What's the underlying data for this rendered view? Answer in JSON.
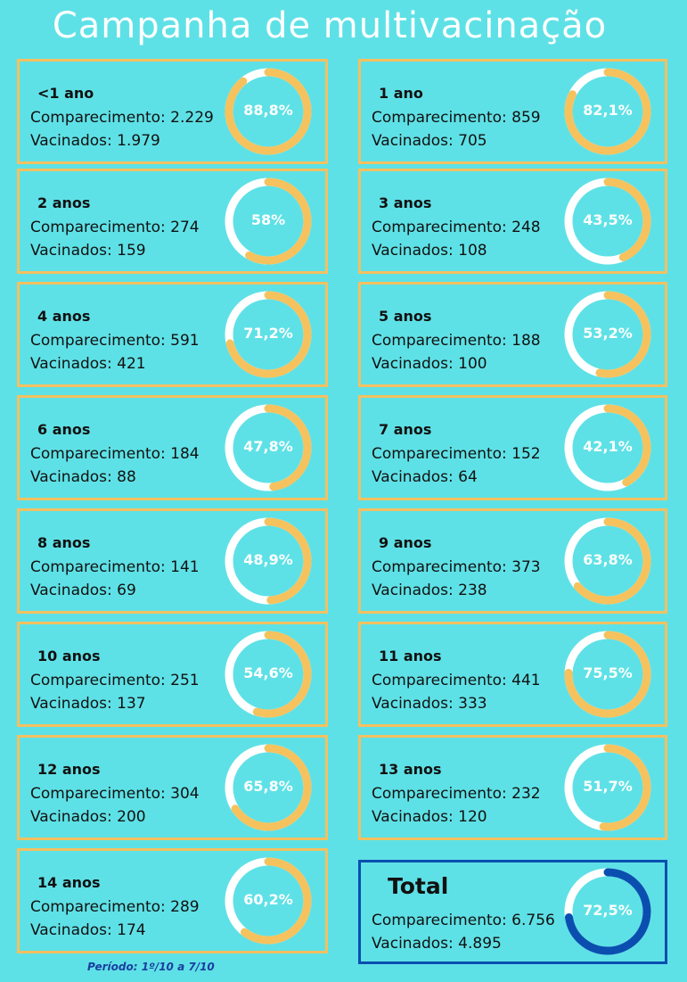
{
  "title": "Campanha de multivacinação",
  "period": "Período: 1º/10 a 7/10",
  "colors": {
    "background": "#5ee1e6",
    "card_border": "#f4c060",
    "ring_fill": "#f6c25e",
    "ring_track": "#ffffff",
    "total_border": "#0a4fb0",
    "total_fill": "#0a4fb0"
  },
  "chart_data": {
    "type": "donut",
    "title": "Campanha de multivacinação",
    "groups": [
      {
        "label": "<1 ano",
        "attendance_text": "Comparecimento: 2.229",
        "vaccinated_text": "Vacinados: 1.979",
        "attendance": 2229,
        "vaccinated": 1979,
        "pct_text": "88,8%",
        "pct": 88.8
      },
      {
        "label": "1 ano",
        "attendance_text": "Comparecimento: 859",
        "vaccinated_text": "Vacinados: 705",
        "attendance": 859,
        "vaccinated": 705,
        "pct_text": "82,1%",
        "pct": 82.1
      },
      {
        "label": "2 anos",
        "attendance_text": "Comparecimento: 274",
        "vaccinated_text": "Vacinados: 159",
        "attendance": 274,
        "vaccinated": 159,
        "pct_text": "58%",
        "pct": 58.0
      },
      {
        "label": "3 anos",
        "attendance_text": "Comparecimento: 248",
        "vaccinated_text": "Vacinados: 108",
        "attendance": 248,
        "vaccinated": 108,
        "pct_text": "43,5%",
        "pct": 43.5
      },
      {
        "label": "4 anos",
        "attendance_text": "Comparecimento: 591",
        "vaccinated_text": "Vacinados: 421",
        "attendance": 591,
        "vaccinated": 421,
        "pct_text": "71,2%",
        "pct": 71.2
      },
      {
        "label": "5 anos",
        "attendance_text": "Comparecimento: 188",
        "vaccinated_text": "Vacinados: 100",
        "attendance": 188,
        "vaccinated": 100,
        "pct_text": "53,2%",
        "pct": 53.2
      },
      {
        "label": "6 anos",
        "attendance_text": "Comparecimento: 184",
        "vaccinated_text": "Vacinados: 88",
        "attendance": 184,
        "vaccinated": 88,
        "pct_text": "47,8%",
        "pct": 47.8
      },
      {
        "label": "7 anos",
        "attendance_text": "Comparecimento: 152",
        "vaccinated_text": "Vacinados: 64",
        "attendance": 152,
        "vaccinated": 64,
        "pct_text": "42,1%",
        "pct": 42.1
      },
      {
        "label": "8 anos",
        "attendance_text": "Comparecimento: 141",
        "vaccinated_text": "Vacinados: 69",
        "attendance": 141,
        "vaccinated": 69,
        "pct_text": "48,9%",
        "pct": 48.9
      },
      {
        "label": "9 anos",
        "attendance_text": "Comparecimento: 373",
        "vaccinated_text": "Vacinados: 238",
        "attendance": 373,
        "vaccinated": 238,
        "pct_text": "63,8%",
        "pct": 63.8
      },
      {
        "label": "10 anos",
        "attendance_text": "Comparecimento: 251",
        "vaccinated_text": "Vacinados: 137",
        "attendance": 251,
        "vaccinated": 137,
        "pct_text": "54,6%",
        "pct": 54.6
      },
      {
        "label": "11 anos",
        "attendance_text": "Comparecimento: 441",
        "vaccinated_text": "Vacinados: 333",
        "attendance": 441,
        "vaccinated": 333,
        "pct_text": "75,5%",
        "pct": 75.5
      },
      {
        "label": "12 anos",
        "attendance_text": "Comparecimento: 304",
        "vaccinated_text": "Vacinados: 200",
        "attendance": 304,
        "vaccinated": 200,
        "pct_text": "65,8%",
        "pct": 65.8
      },
      {
        "label": "13 anos",
        "attendance_text": "Comparecimento: 232",
        "vaccinated_text": "Vacinados: 120",
        "attendance": 232,
        "vaccinated": 120,
        "pct_text": "51,7%",
        "pct": 51.7
      },
      {
        "label": "14 anos",
        "attendance_text": "Comparecimento: 289",
        "vaccinated_text": "Vacinados: 174",
        "attendance": 289,
        "vaccinated": 174,
        "pct_text": "60,2%",
        "pct": 60.2
      },
      {
        "label": "Total",
        "attendance_text": "Comparecimento: 6.756",
        "vaccinated_text": "Vacinados: 4.895",
        "attendance": 6756,
        "vaccinated": 4895,
        "pct_text": "72,5%",
        "pct": 72.5,
        "is_total": true
      }
    ]
  }
}
